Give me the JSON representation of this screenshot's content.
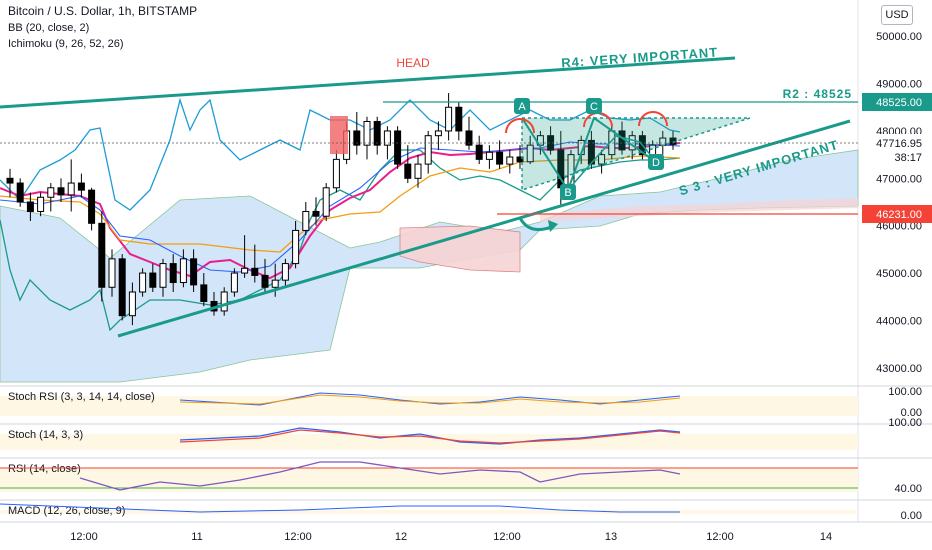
{
  "header": {
    "title": "Bitcoin / U.S. Dollar, 1h, BITSTAMP",
    "indicators": [
      "BB (20, close, 2)",
      "Ichimoku (9, 26, 52, 26)"
    ],
    "currency_button": "USD"
  },
  "annotations": {
    "head": "HEAD",
    "r4": "R4: VERY IMPORTANT",
    "r2": "R2 : 48525",
    "s3": "S 3 : VERY IMPORTANT",
    "points": [
      "A",
      "B",
      "C",
      "D"
    ]
  },
  "price_axis": {
    "ticks": [
      "50000.00",
      "49000.00",
      "48000.00",
      "47000.00",
      "46000.00",
      "45000.00",
      "44000.00",
      "43000.00"
    ],
    "labels": {
      "r2": "48525.00",
      "current": "47716.95",
      "countdown": "38:17",
      "support": "46231.00"
    }
  },
  "time_axis": [
    "12:00",
    "11",
    "12:00",
    "12",
    "12:00",
    "13",
    "12:00",
    "14"
  ],
  "panes": {
    "stoch_rsi": {
      "title": "Stoch RSI (3, 3, 14, 14, close)",
      "ticks": [
        "100.00",
        "0.00"
      ]
    },
    "stoch": {
      "title": "Stoch (14, 3, 3)",
      "ticks": [
        "100.00"
      ]
    },
    "rsi": {
      "title": "RSI (14, close)",
      "ticks": [
        "40.00"
      ]
    },
    "macd": {
      "title": "MACD (12, 26, close, 9)",
      "ticks": [
        "0.00"
      ]
    }
  },
  "colors": {
    "up": "#ffffff",
    "down": "#000000",
    "teal": "#1a9a8a",
    "bb_blue": "#1e9bd7",
    "magenta": "#e91e8c",
    "orange": "#f39c12",
    "red": "#f44336",
    "cloud_blue": "#cfe3f8",
    "cloud_red": "#f7d4d4"
  },
  "chart_data": {
    "type": "candlestick",
    "price_ylim": [
      42700,
      50300
    ],
    "candles_hourly": [
      [
        47000,
        47200,
        46600,
        46900
      ],
      [
        46900,
        47000,
        46400,
        46500
      ],
      [
        46500,
        46700,
        46100,
        46300
      ],
      [
        46300,
        46700,
        46200,
        46600
      ],
      [
        46600,
        46900,
        46300,
        46800
      ],
      [
        46800,
        47000,
        46500,
        46650
      ],
      [
        46650,
        47400,
        46300,
        46900
      ],
      [
        46900,
        47100,
        46600,
        46750
      ],
      [
        46750,
        46800,
        45900,
        46050
      ],
      [
        46050,
        46300,
        44400,
        44700
      ],
      [
        44700,
        45500,
        44500,
        45300
      ],
      [
        45300,
        45400,
        44000,
        44100
      ],
      [
        44100,
        44800,
        43900,
        44600
      ],
      [
        44600,
        45100,
        44500,
        45000
      ],
      [
        45000,
        45200,
        44600,
        44700
      ],
      [
        44700,
        45300,
        44500,
        45200
      ],
      [
        45200,
        45400,
        44600,
        44800
      ],
      [
        44800,
        45500,
        44700,
        45300
      ],
      [
        45300,
        45500,
        44600,
        44750
      ],
      [
        44750,
        45000,
        44300,
        44400
      ],
      [
        44400,
        44600,
        44100,
        44200
      ],
      [
        44200,
        44700,
        44100,
        44600
      ],
      [
        44600,
        45100,
        44500,
        45000
      ],
      [
        45000,
        45800,
        44900,
        45100
      ],
      [
        45100,
        45600,
        44800,
        44950
      ],
      [
        44950,
        45300,
        44600,
        44700
      ],
      [
        44700,
        45200,
        44500,
        44850
      ],
      [
        44850,
        45300,
        44700,
        45200
      ],
      [
        45200,
        46100,
        45100,
        45900
      ],
      [
        45900,
        46500,
        45800,
        46300
      ],
      [
        46300,
        46600,
        46000,
        46200
      ],
      [
        46200,
        46900,
        46100,
        46800
      ],
      [
        46800,
        47600,
        46700,
        47400
      ],
      [
        47400,
        48200,
        47300,
        48000
      ],
      [
        48000,
        48400,
        47500,
        47700
      ],
      [
        47700,
        48300,
        47400,
        48200
      ],
      [
        48200,
        48300,
        47500,
        47700
      ],
      [
        47700,
        48100,
        47400,
        48000
      ],
      [
        48000,
        48100,
        47200,
        47300
      ],
      [
        47300,
        47700,
        46900,
        47000
      ],
      [
        47000,
        47500,
        46800,
        47300
      ],
      [
        47300,
        48000,
        47100,
        47900
      ],
      [
        47900,
        48200,
        47600,
        48000
      ],
      [
        48000,
        48800,
        47800,
        48500
      ],
      [
        48500,
        48600,
        47800,
        48000
      ],
      [
        48000,
        48300,
        47600,
        47700
      ],
      [
        47700,
        47900,
        47300,
        47400
      ],
      [
        47400,
        47700,
        47200,
        47550
      ],
      [
        47550,
        47800,
        47200,
        47300
      ],
      [
        47300,
        47600,
        47100,
        47450
      ],
      [
        47450,
        47700,
        47200,
        47350
      ],
      [
        47350,
        47900,
        47300,
        47700
      ],
      [
        47700,
        48000,
        47500,
        47900
      ],
      [
        47900,
        48100,
        47500,
        47600
      ],
      [
        47600,
        48000,
        46400,
        46800
      ],
      [
        46800,
        47600,
        46700,
        47500
      ],
      [
        47500,
        47900,
        47300,
        47800
      ],
      [
        47800,
        48000,
        47200,
        47300
      ],
      [
        47300,
        47600,
        47100,
        47500
      ],
      [
        47500,
        48100,
        47400,
        48000
      ],
      [
        48000,
        48200,
        47500,
        47600
      ],
      [
        47600,
        48000,
        47400,
        47900
      ],
      [
        47900,
        48000,
        47400,
        47500
      ],
      [
        47500,
        47800,
        47300,
        47700
      ],
      [
        47700,
        48000,
        47500,
        47850
      ],
      [
        47850,
        48000,
        47600,
        47717
      ]
    ]
  }
}
